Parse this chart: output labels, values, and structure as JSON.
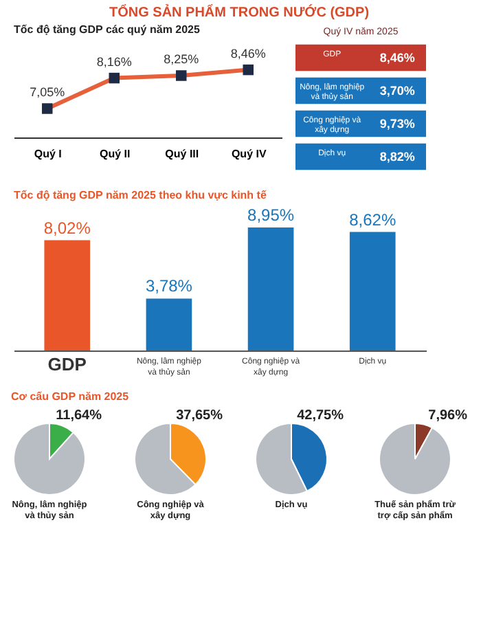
{
  "chart_data": [
    {
      "type": "line",
      "title": "TỔNG SẢN PHẨM TRONG NƯỚC (GDP)",
      "subtitle": "Tốc độ tăng GDP các quý năm 2025",
      "categories": [
        "Quý I",
        "Quý II",
        "Quý III",
        "Quý IV"
      ],
      "values": [
        7.05,
        8.16,
        8.25,
        8.46
      ],
      "value_labels": [
        "7,05%",
        "8,16%",
        "8,25%",
        "8,46%"
      ],
      "color": "#e5603b",
      "marker": "square",
      "line_style": "solid",
      "tick_labels": "x"
    },
    {
      "type": "other",
      "title": "Quý IV năm 2025",
      "categories": [
        "GDP",
        "Nông, lâm nghiệp và thủy sản",
        "Công nghiệp và xây dựng",
        "Dịch vụ"
      ],
      "value_labels": [
        "8,46%",
        "3,70%",
        "9,73%",
        "8,82%"
      ],
      "colors": [
        "#c23b2e",
        "#1b75bc",
        "#1b75bc",
        "#1b75bc"
      ]
    },
    {
      "type": "bar",
      "title": "Tốc độ tăng GDP năm 2025 theo khu vực kinh tế",
      "categories": [
        "GDP",
        "Nông, lâm nghiệp và thủy sản",
        "Công nghiệp và xây dựng",
        "Dịch vụ"
      ],
      "values": [
        8.02,
        3.78,
        8.95,
        8.62
      ],
      "value_labels": [
        "8,02%",
        "3,78%",
        "8,95%",
        "8,62%"
      ],
      "colors": [
        "#e8562a",
        "#1a75bb",
        "#1a75bb",
        "#1a75bb"
      ],
      "tick_labels": "x"
    },
    {
      "type": "pie",
      "annotations": [
        "Cơ cấu GDP năm 2025"
      ],
      "title": "Nông, lâm nghiệp và thủy sản",
      "categories": [
        null,
        null
      ],
      "values": [
        11.64,
        88.36
      ],
      "value_labels": [
        "11,64%",
        null
      ],
      "colors": [
        "#3cae49",
        "#b8bcc3"
      ]
    },
    {
      "type": "pie",
      "title": "Công nghiệp và xây dựng",
      "categories": [
        null,
        null
      ],
      "values": [
        37.65,
        62.35
      ],
      "value_labels": [
        "37,65%",
        null
      ],
      "colors": [
        "#f7941d",
        "#b8bcc3"
      ]
    },
    {
      "type": "pie",
      "title": "Dịch vụ",
      "categories": [
        null,
        null
      ],
      "values": [
        42.75,
        57.25
      ],
      "value_labels": [
        "42,75%",
        null
      ],
      "colors": [
        "#1b6fb5",
        "#b8bcc3"
      ]
    },
    {
      "type": "pie",
      "title": "Thuế sản phẩm trừ trợ cấp sản phẩm",
      "categories": [
        null,
        null
      ],
      "values": [
        7.96,
        92.04
      ],
      "value_labels": [
        "7,96%",
        null
      ],
      "colors": [
        "#8b3a2a",
        "#b8bcc3"
      ]
    }
  ]
}
